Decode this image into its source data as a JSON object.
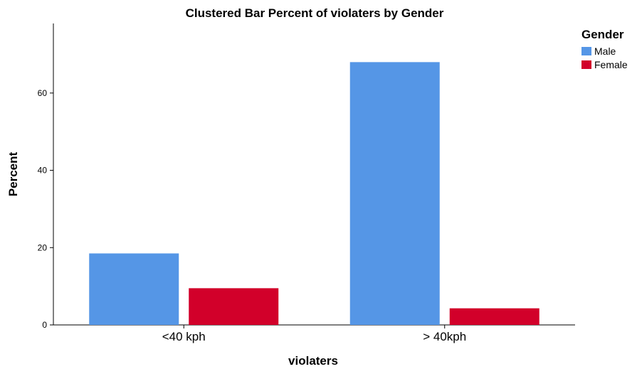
{
  "chart_data": {
    "type": "bar",
    "title": "Clustered Bar Percent of violaters by Gender",
    "xlabel": "violaters",
    "ylabel": "Percent",
    "categories": [
      "<40 kph",
      "> 40kph"
    ],
    "series": [
      {
        "name": "Male",
        "color": "#5596E6",
        "values": [
          18.5,
          68
        ]
      },
      {
        "name": "Female",
        "color": "#D2002A",
        "values": [
          9.5,
          4.3
        ]
      }
    ],
    "ylim": [
      0,
      78
    ],
    "yticks": [
      0,
      20,
      40,
      60
    ],
    "legend": {
      "title": "Gender",
      "placement": "top-right"
    },
    "grid": false
  }
}
